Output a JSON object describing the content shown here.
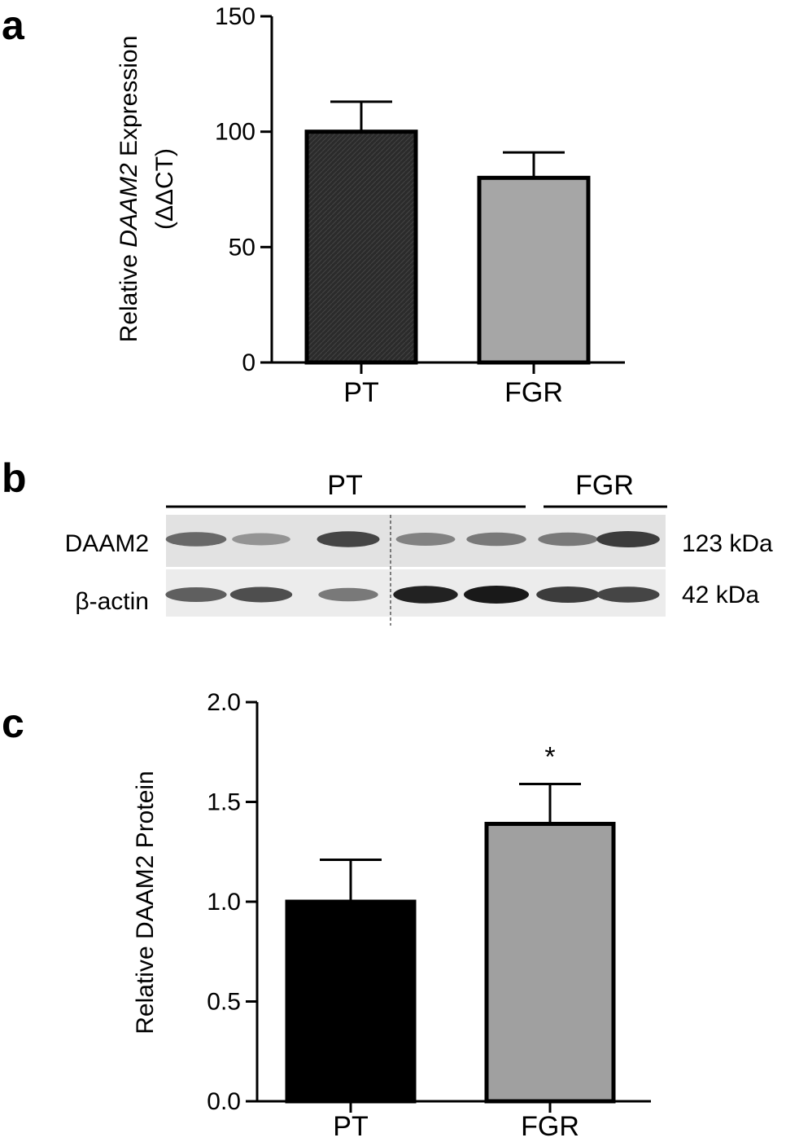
{
  "panels": {
    "a": {
      "letter": "a"
    },
    "b": {
      "letter": "b"
    },
    "c": {
      "letter": "c"
    }
  },
  "chart_data": [
    {
      "type": "bar",
      "panel": "a",
      "categories": [
        "PT",
        "FGR"
      ],
      "values": [
        100,
        80
      ],
      "errors": [
        13,
        11
      ],
      "ylim": [
        0,
        150
      ],
      "yticks": [
        0,
        50,
        100,
        150
      ],
      "ytick_labels": [
        "0",
        "50",
        "100",
        "150"
      ],
      "ylabel_parts": [
        "Relative ",
        "DAAM2",
        " Expression"
      ],
      "ylabel_line2": "(ΔΔCT)",
      "xlabel": "",
      "bar_fills": [
        "#2b2b2b",
        "#a6a6a6"
      ],
      "significance": [
        "",
        ""
      ]
    },
    {
      "type": "bar",
      "panel": "c",
      "categories": [
        "PT",
        "FGR"
      ],
      "values": [
        1.0,
        1.39
      ],
      "errors": [
        0.21,
        0.2
      ],
      "ylim": [
        0,
        2.0
      ],
      "yticks": [
        0.0,
        0.5,
        1.0,
        1.5,
        2.0
      ],
      "ytick_labels": [
        "0.0",
        "0.5",
        "1.0",
        "1.5",
        "2.0"
      ],
      "ylabel": "Relative DAAM2 Protein",
      "xlabel": "",
      "bar_fills": [
        "#000000",
        "#a0a0a0"
      ],
      "significance": [
        "",
        "*"
      ]
    }
  ],
  "blot": {
    "group_labels": [
      "PT",
      "FGR"
    ],
    "group_lanes": [
      5,
      2
    ],
    "rows": [
      {
        "name": "DAAM2",
        "size": "123 kDa",
        "intensities": [
          0.55,
          0.3,
          0.75,
          0.4,
          0.45,
          0.45,
          0.8
        ]
      },
      {
        "name": "β-actin",
        "size": "42 kDa",
        "intensities": [
          0.6,
          0.7,
          0.45,
          0.95,
          1.0,
          0.8,
          0.75
        ]
      }
    ]
  }
}
